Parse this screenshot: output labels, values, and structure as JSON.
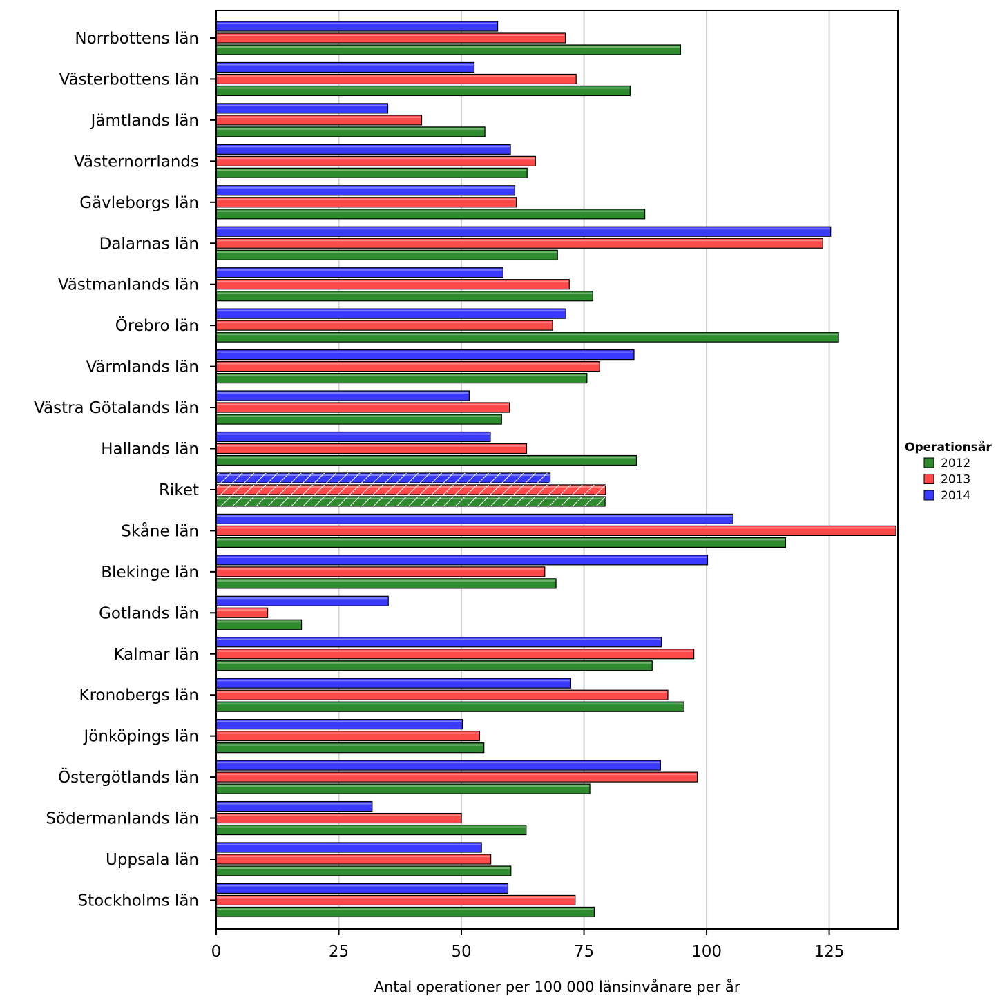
{
  "chart_data": {
    "type": "bar",
    "orientation": "horizontal",
    "xlabel": "Antal operationer per 100 000 länsinvånare per år",
    "xlim": [
      0,
      139
    ],
    "xticks": [
      0,
      25,
      50,
      75,
      100,
      125
    ],
    "grid": "vertical",
    "legend": {
      "title": "Operationsår",
      "placement": "right"
    },
    "categories": [
      "Norrbottens län",
      "Västerbottens län",
      "Jämtlands län",
      "Västernorrlands",
      "Gävleborgs län",
      "Dalarnas län",
      "Västmanlands län",
      "Örebro län",
      "Värmlands län",
      "Västra Götalands län",
      "Hallands län",
      "Riket",
      "Skåne län",
      "Blekinge län",
      "Gotlands län",
      "Kalmar län",
      "Kronobergs län",
      "Jönköpings län",
      "Östergötlands län",
      "Södermanlands län",
      "Uppsala län",
      "Stockholms län"
    ],
    "highlighted_category": "Riket",
    "series": [
      {
        "name": "2012",
        "color": "#2e8b2e",
        "values": [
          94.7,
          84.4,
          54.8,
          63.4,
          87.4,
          69.6,
          76.8,
          126.9,
          75.6,
          58.2,
          85.7,
          79.3,
          116.1,
          69.3,
          17.4,
          88.9,
          95.4,
          54.6,
          76.2,
          63.2,
          60.1,
          77.1
        ]
      },
      {
        "name": "2013",
        "color": "#ff4a4a",
        "values": [
          71.2,
          73.4,
          41.9,
          65.1,
          61.2,
          123.7,
          72.0,
          68.6,
          78.2,
          59.8,
          63.3,
          79.4,
          138.6,
          67.0,
          10.5,
          97.4,
          92.1,
          53.7,
          98.1,
          50.0,
          56.0,
          73.2
        ]
      },
      {
        "name": "2014",
        "color": "#3a3aff",
        "values": [
          57.4,
          52.6,
          35.0,
          60.0,
          60.9,
          125.3,
          58.5,
          71.3,
          85.2,
          51.6,
          55.9,
          68.1,
          105.4,
          100.2,
          35.1,
          90.8,
          72.3,
          50.2,
          90.6,
          31.8,
          54.1,
          59.5
        ]
      }
    ]
  }
}
